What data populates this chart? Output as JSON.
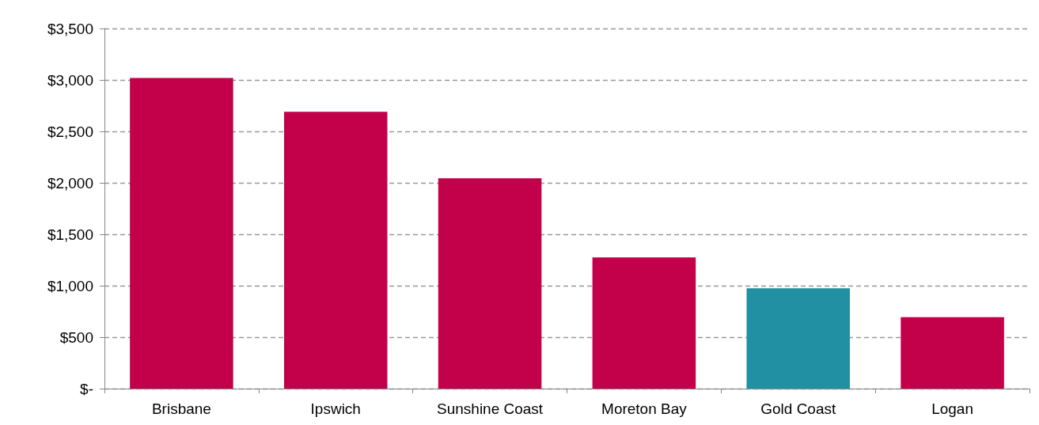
{
  "chart_data": {
    "type": "bar",
    "categories": [
      "Brisbane",
      "Ipswich",
      "Sunshine Coast",
      "Moreton Bay",
      "Gold Coast",
      "Logan"
    ],
    "values": [
      3020,
      2690,
      2045,
      1275,
      975,
      695
    ],
    "colors": [
      "#c3004a",
      "#c3004a",
      "#c3004a",
      "#c3004a",
      "#2190a3",
      "#c3004a"
    ],
    "ylim": [
      0,
      3500
    ],
    "yticks": [
      {
        "value": 0,
        "label": "$-"
      },
      {
        "value": 500,
        "label": "$500"
      },
      {
        "value": 1000,
        "label": "$1,000"
      },
      {
        "value": 1500,
        "label": "$1,500"
      },
      {
        "value": 2000,
        "label": "$2,000"
      },
      {
        "value": 2500,
        "label": "$2,500"
      },
      {
        "value": 3000,
        "label": "$3,000"
      },
      {
        "value": 3500,
        "label": "$3,500"
      }
    ],
    "grid": "y"
  }
}
